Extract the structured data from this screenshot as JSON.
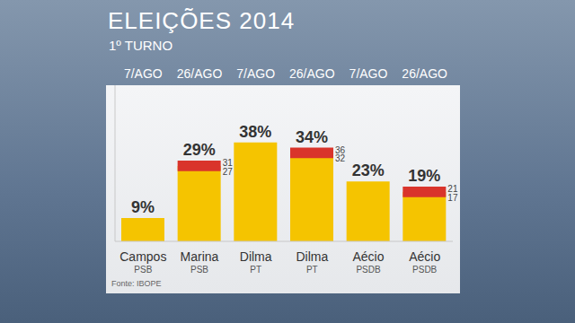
{
  "chart_data": {
    "type": "bar",
    "title": "ELEIÇÕES 2014",
    "subtitle": "1º TURNO",
    "categories": [
      "Campos",
      "Marina",
      "Dilma",
      "Dilma",
      "Aécio",
      "Aécio"
    ],
    "parties": [
      "PSB",
      "PSB",
      "PT",
      "PT",
      "PSDB",
      "PSDB"
    ],
    "dates": [
      "7/AGO",
      "26/AGO",
      "7/AGO",
      "26/AGO",
      "7/AGO",
      "26/AGO"
    ],
    "values": [
      9,
      29,
      38,
      34,
      23,
      19
    ],
    "value_labels": [
      "9%",
      "29%",
      "38%",
      "34%",
      "23%",
      "19%"
    ],
    "error_low": [
      null,
      27,
      null,
      32,
      null,
      17
    ],
    "error_high": [
      null,
      31,
      null,
      36,
      null,
      21
    ],
    "source": "Fonte: IBOPE",
    "color": "#f5c400",
    "ylim": [
      0,
      60
    ],
    "data_labels": true,
    "tick_labels": "x"
  }
}
